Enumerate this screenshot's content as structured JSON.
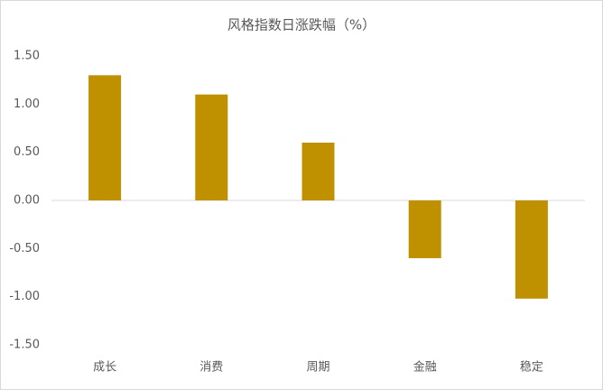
{
  "chart_data": {
    "type": "bar",
    "title": "风格指数日涨跌幅（%）",
    "categories": [
      "成长",
      "消费",
      "周期",
      "金融",
      "稳定"
    ],
    "values": [
      1.3,
      1.1,
      0.6,
      -0.6,
      -1.02
    ],
    "color": "#bf9000",
    "ylim": [
      -1.5,
      1.5
    ],
    "yticks": [
      {
        "value": 1.5,
        "label": "1.50"
      },
      {
        "value": 1.0,
        "label": "1.00"
      },
      {
        "value": 0.5,
        "label": "0.50"
      },
      {
        "value": 0,
        "label": "0.00"
      },
      {
        "value": -0.5,
        "label": "-0.50"
      },
      {
        "value": -1.0,
        "label": "-1.00"
      },
      {
        "value": -1.5,
        "label": "-1.50"
      }
    ],
    "grid": false
  }
}
